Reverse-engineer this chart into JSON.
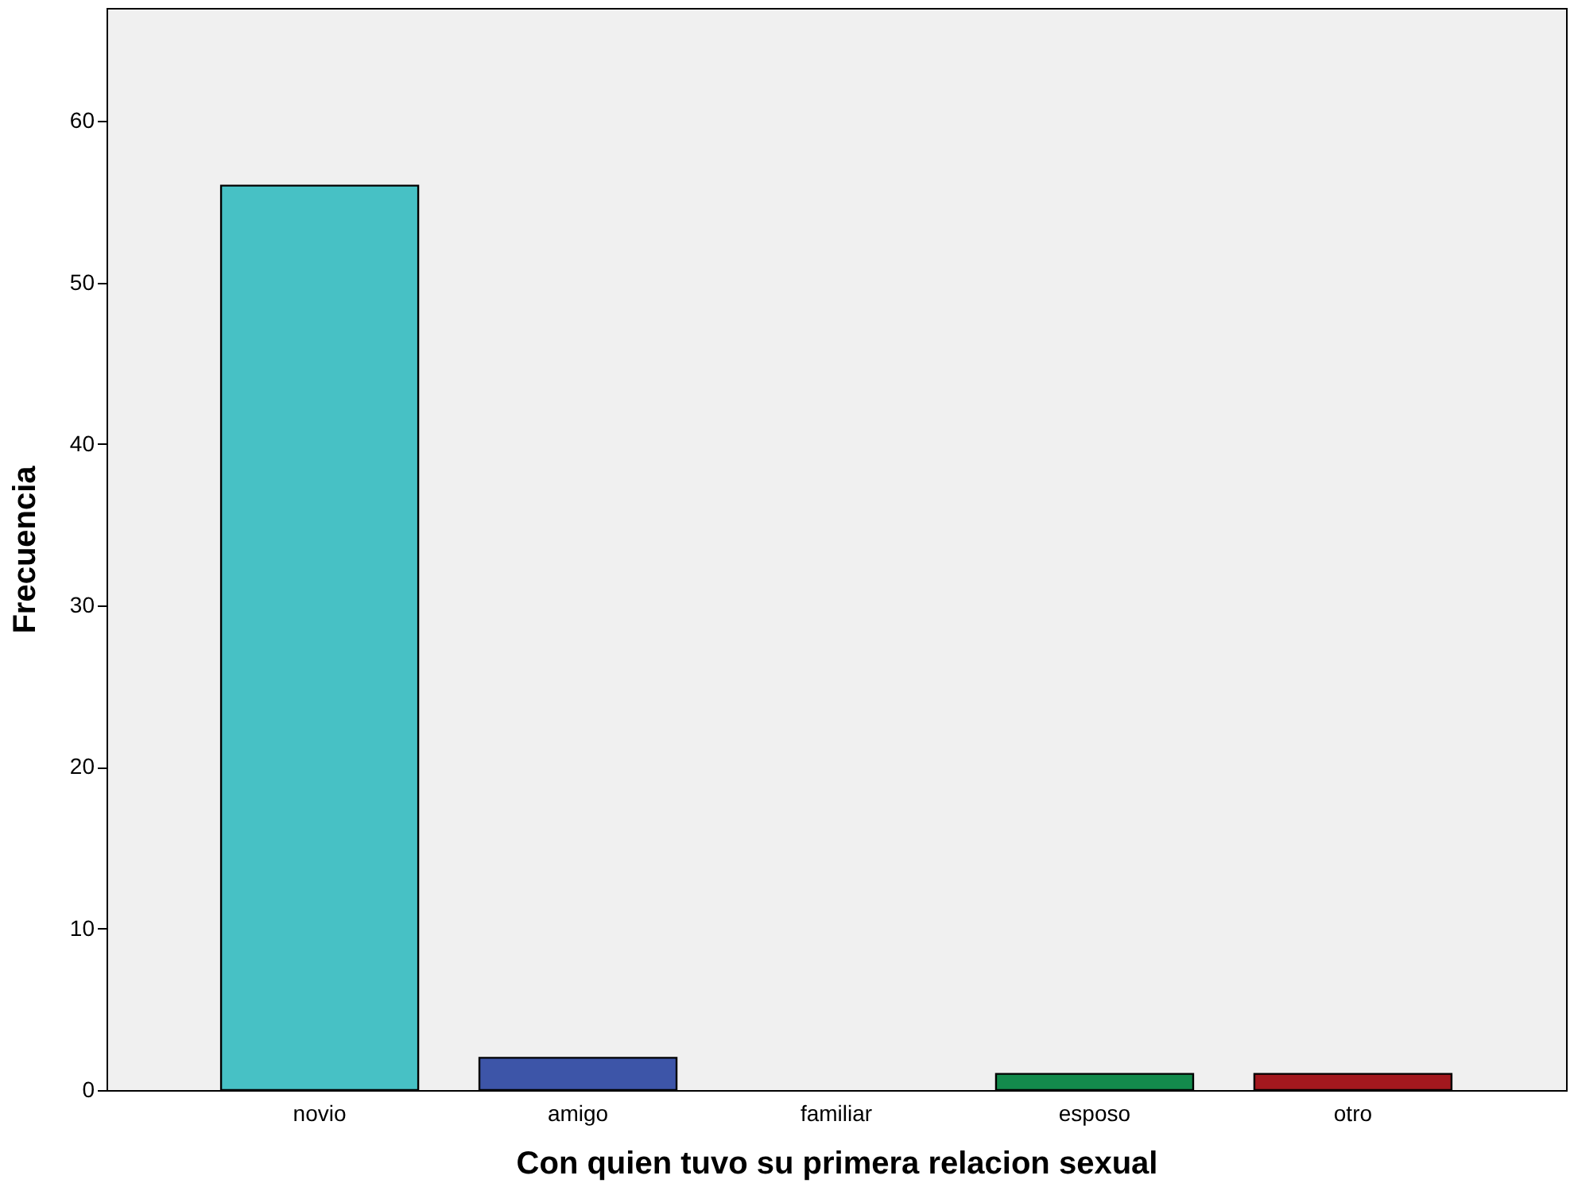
{
  "chart_data": {
    "type": "bar",
    "xlabel": "Con quien tuvo su primera relacion sexual",
    "ylabel": "Frecuencia",
    "categories": [
      "novio",
      "amigo",
      "familiar",
      "esposo",
      "otro"
    ],
    "values": [
      56,
      2,
      0,
      1,
      1
    ],
    "colors": [
      "#47c1c5",
      "#3d55a8",
      "#d9b64a",
      "#138a4c",
      "#a3181e"
    ],
    "ylim": [
      0,
      67
    ],
    "yticks": [
      0,
      10,
      20,
      30,
      40,
      50,
      60
    ],
    "grid": false,
    "legend": false
  }
}
